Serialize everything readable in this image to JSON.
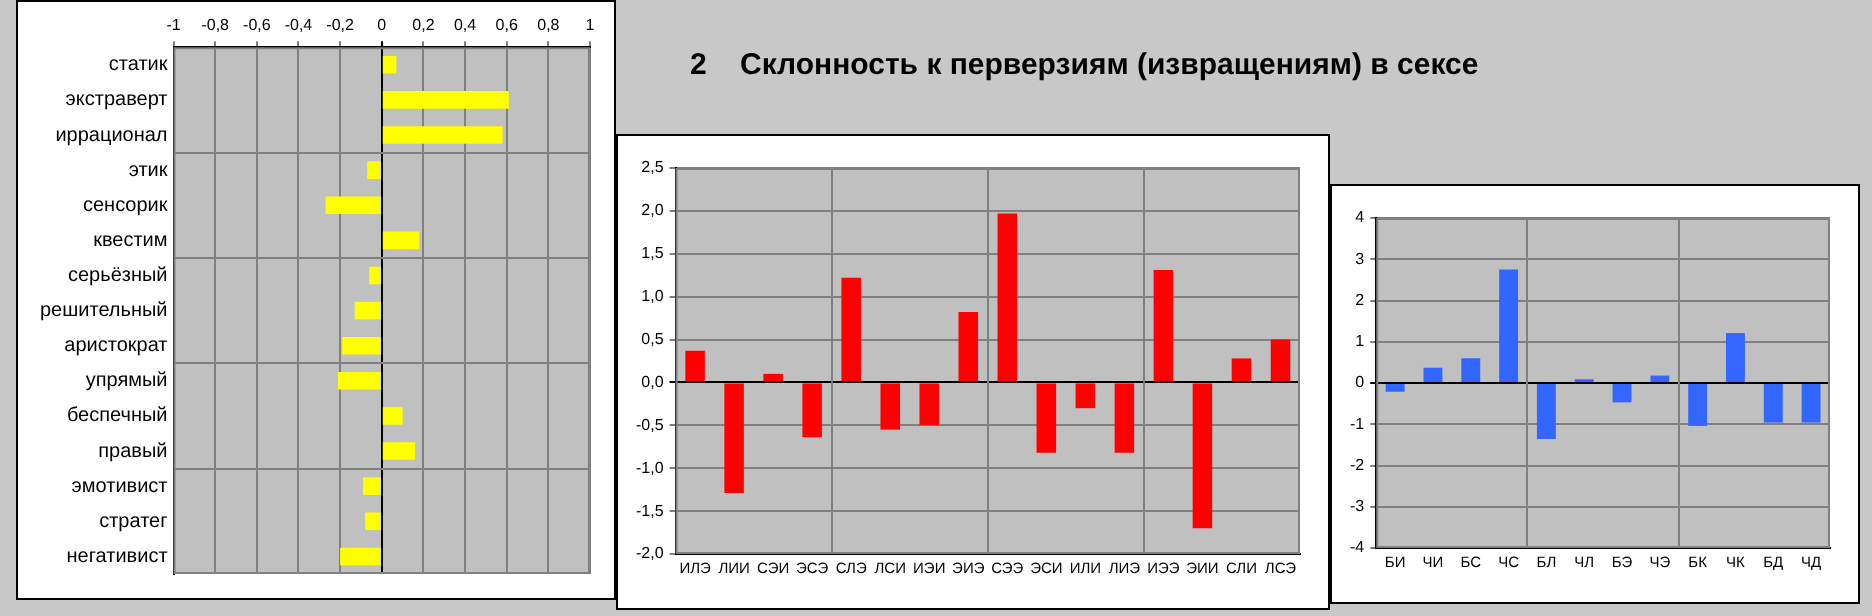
{
  "chart_data": [
    {
      "type": "bar",
      "orientation": "horizontal",
      "categories": [
        "статик",
        "экстраверт",
        "иррационал",
        "этик",
        "сенсорик",
        "квестим",
        "серьёзный",
        "решительный",
        "аристократ",
        "упрямый",
        "беспечный",
        "правый",
        "эмотивист",
        "стратег",
        "негативист"
      ],
      "values": [
        0.07,
        0.61,
        0.58,
        -0.07,
        -0.27,
        0.18,
        -0.06,
        -0.13,
        -0.19,
        -0.21,
        0.1,
        0.16,
        -0.09,
        -0.08,
        -0.2
      ],
      "color": "#ffff00",
      "xlim": [
        -1,
        1
      ],
      "xticks": [
        -1,
        {
          "value": -0.8,
          "label": "-0,8"
        },
        {
          "value": -0.6,
          "label": "-0,6"
        },
        {
          "value": -0.4,
          "label": "-0,4"
        },
        {
          "value": -0.2,
          "label": "-0,2"
        },
        0,
        {
          "value": 0.2,
          "label": "0,2"
        },
        {
          "value": 0.4,
          "label": "0,4"
        },
        {
          "value": 0.6,
          "label": "0,6"
        },
        {
          "value": 0.8,
          "label": "0,8"
        },
        1
      ],
      "grid": true
    },
    {
      "type": "bar",
      "title": "2    Склонность к перверзиям (извращениям) в сексе",
      "categories": [
        "ИЛЭ",
        "ЛИИ",
        "СЭИ",
        "ЭСЭ",
        "СЛЭ",
        "ЛСИ",
        "ИЭИ",
        "ЭИЭ",
        "СЭЭ",
        "ЭСИ",
        "ИЛИ",
        "ЛИЭ",
        "ИЭЭ",
        "ЭИИ",
        "СЛИ",
        "ЛСЭ"
      ],
      "values": [
        0.37,
        -1.29,
        0.1,
        -0.64,
        1.22,
        -0.55,
        -0.5,
        0.82,
        1.97,
        -0.82,
        -0.3,
        -0.82,
        1.31,
        -1.7,
        0.28,
        0.5
      ],
      "color": "#ff0000",
      "ylim": [
        -2,
        2.5
      ],
      "yticks": [
        {
          "value": -2,
          "label": "-2,0"
        },
        {
          "value": -1.5,
          "label": "-1,5"
        },
        {
          "value": -1,
          "label": "-1,0"
        },
        {
          "value": -0.5,
          "label": "-0,5"
        },
        {
          "value": 0,
          "label": "0,0"
        },
        {
          "value": 0.5,
          "label": "0,5"
        },
        {
          "value": 1,
          "label": "1,0"
        },
        {
          "value": 1.5,
          "label": "1,5"
        },
        {
          "value": 2,
          "label": "2,0"
        },
        {
          "value": 2.5,
          "label": "2,5"
        }
      ],
      "grid": true
    },
    {
      "type": "bar",
      "categories": [
        "БИ",
        "ЧИ",
        "БС",
        "ЧС",
        "БЛ",
        "ЧЛ",
        "БЭ",
        "ЧЭ",
        "БК",
        "ЧК",
        "БД",
        "ЧД"
      ],
      "values": [
        -0.21,
        0.37,
        0.6,
        2.75,
        -1.36,
        0.09,
        -0.47,
        0.18,
        -1.04,
        1.21,
        -0.96,
        -0.96
      ],
      "color": "#3366ff",
      "ylim": [
        -4,
        4
      ],
      "yticks": [
        -4,
        -3,
        -2,
        -1,
        0,
        1,
        2,
        3,
        4
      ],
      "grid": true
    }
  ]
}
